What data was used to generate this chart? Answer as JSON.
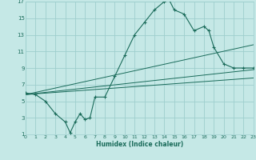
{
  "xlabel": "Humidex (Indice chaleur)",
  "bg_color": "#c5e8e6",
  "grid_color": "#9ecece",
  "line_color": "#1a6b5a",
  "xlim": [
    0,
    23
  ],
  "ylim": [
    1,
    17
  ],
  "xticks": [
    0,
    1,
    2,
    3,
    4,
    5,
    6,
    7,
    8,
    9,
    10,
    11,
    12,
    13,
    14,
    15,
    16,
    17,
    18,
    19,
    20,
    21,
    22,
    23
  ],
  "yticks": [
    1,
    3,
    5,
    7,
    9,
    11,
    13,
    15,
    17
  ],
  "main_x": [
    0,
    1,
    2,
    3,
    4,
    4.5,
    5,
    5.5,
    6,
    6.5,
    7,
    8,
    9,
    10,
    11,
    12,
    13,
    14,
    14.5,
    15,
    16,
    17,
    18,
    18.5,
    19,
    20,
    21,
    22,
    23
  ],
  "main_y": [
    6,
    5.8,
    5,
    3.5,
    2.5,
    1.2,
    2.5,
    3.5,
    2.8,
    3.0,
    5.5,
    5.5,
    8.0,
    10.5,
    13.0,
    14.5,
    16.0,
    17.0,
    17.2,
    16.0,
    15.5,
    13.5,
    14.0,
    13.5,
    11.5,
    9.5,
    9.0,
    9.0,
    9.0
  ],
  "ref_lines": [
    {
      "x": [
        0,
        23
      ],
      "y": [
        5.8,
        8.8
      ]
    },
    {
      "x": [
        0,
        23
      ],
      "y": [
        5.8,
        7.8
      ]
    },
    {
      "x": [
        0,
        23
      ],
      "y": [
        5.8,
        11.8
      ]
    }
  ]
}
